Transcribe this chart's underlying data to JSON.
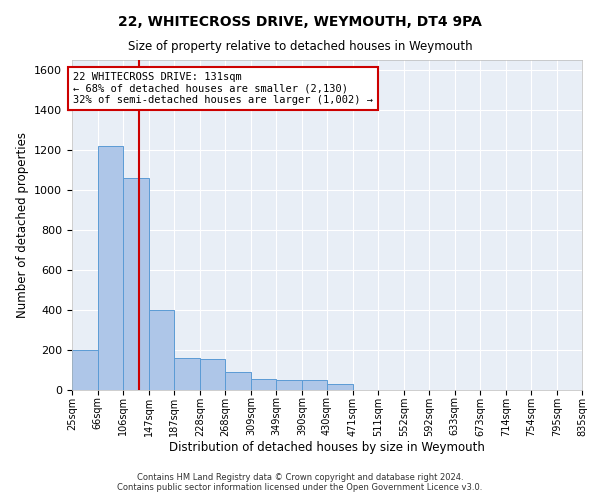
{
  "title": "22, WHITECROSS DRIVE, WEYMOUTH, DT4 9PA",
  "subtitle": "Size of property relative to detached houses in Weymouth",
  "xlabel": "Distribution of detached houses by size in Weymouth",
  "ylabel": "Number of detached properties",
  "footer_line1": "Contains HM Land Registry data © Crown copyright and database right 2024.",
  "footer_line2": "Contains public sector information licensed under the Open Government Licence v3.0.",
  "bin_edges": [
    25,
    66,
    106,
    147,
    187,
    228,
    268,
    309,
    349,
    390,
    430,
    471,
    511,
    552,
    592,
    633,
    673,
    714,
    754,
    795,
    835
  ],
  "bin_labels": [
    "25sqm",
    "66sqm",
    "106sqm",
    "147sqm",
    "187sqm",
    "228sqm",
    "268sqm",
    "309sqm",
    "349sqm",
    "390sqm",
    "430sqm",
    "471sqm",
    "511sqm",
    "552sqm",
    "592sqm",
    "633sqm",
    "673sqm",
    "714sqm",
    "754sqm",
    "795sqm",
    "835sqm"
  ],
  "bar_heights": [
    200,
    1220,
    1060,
    400,
    160,
    155,
    90,
    55,
    50,
    50,
    30,
    0,
    0,
    0,
    0,
    0,
    0,
    0,
    0,
    0
  ],
  "bar_color": "#aec6e8",
  "bar_edge_color": "#5b9bd5",
  "property_size": 131,
  "vline_color": "#cc0000",
  "ylim": [
    0,
    1650
  ],
  "yticks": [
    0,
    200,
    400,
    600,
    800,
    1000,
    1200,
    1400,
    1600
  ],
  "annotation_line1": "22 WHITECROSS DRIVE: 131sqm",
  "annotation_line2": "← 68% of detached houses are smaller (2,130)",
  "annotation_line3": "32% of semi-detached houses are larger (1,002) →",
  "annotation_box_color": "#cc0000",
  "bg_color": "#e8eef6",
  "grid_color": "#ffffff"
}
